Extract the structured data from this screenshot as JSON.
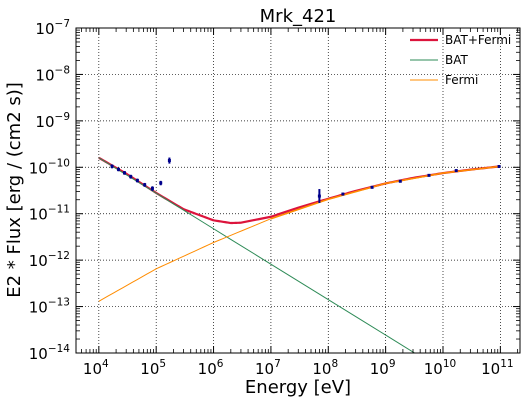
{
  "chart_data": {
    "type": "line",
    "title": "Mrk_421",
    "xlabel": "Energy [eV]",
    "ylabel": "E2 * Flux [erg / (cm2 s)]",
    "xscale": "log",
    "yscale": "log",
    "xlim": [
      4000,
      220000000000
    ],
    "ylim": [
      1e-14,
      1e-07
    ],
    "grid": true,
    "grid_style": "dotted",
    "legend_position": "top-right",
    "x_ticks": [
      {
        "base": "10",
        "exp": "4",
        "value": 10000
      },
      {
        "base": "10",
        "exp": "5",
        "value": 100000
      },
      {
        "base": "10",
        "exp": "6",
        "value": 1000000
      },
      {
        "base": "10",
        "exp": "7",
        "value": 10000000
      },
      {
        "base": "10",
        "exp": "8",
        "value": 100000000
      },
      {
        "base": "10",
        "exp": "9",
        "value": 1000000000
      },
      {
        "base": "10",
        "exp": "10",
        "value": 10000000000
      },
      {
        "base": "10",
        "exp": "11",
        "value": 100000000000
      }
    ],
    "y_ticks": [
      {
        "base": "10",
        "exp": "−14",
        "value": 1e-14
      },
      {
        "base": "10",
        "exp": "−13",
        "value": 1e-13
      },
      {
        "base": "10",
        "exp": "−12",
        "value": 1e-12
      },
      {
        "base": "10",
        "exp": "−11",
        "value": 1e-11
      },
      {
        "base": "10",
        "exp": "−10",
        "value": 1e-10
      },
      {
        "base": "10",
        "exp": "−9",
        "value": 1e-09
      },
      {
        "base": "10",
        "exp": "−8",
        "value": 1e-08
      },
      {
        "base": "10",
        "exp": "−7",
        "value": 1e-07
      }
    ],
    "series": [
      {
        "name": "BAT+Fermi",
        "color": "#dc143c",
        "points": [
          [
            10000,
            1.6e-10
          ],
          [
            30000,
            7.3e-11
          ],
          [
            100000,
            2.8e-11
          ],
          [
            300000,
            1.25e-11
          ],
          [
            1000000,
            7.2e-12
          ],
          [
            2000000,
            6.3e-12
          ],
          [
            3000000,
            6.4e-12
          ],
          [
            10000000,
            8.6e-12
          ],
          [
            30000000,
            1.35e-11
          ],
          [
            100000000,
            2.1e-11
          ],
          [
            300000000,
            3.1e-11
          ],
          [
            1000000000,
            4.5e-11
          ],
          [
            3000000000,
            5.9e-11
          ],
          [
            10000000000,
            7.5e-11
          ],
          [
            30000000000,
            8.9e-11
          ],
          [
            100000000000,
            1.05e-10
          ]
        ]
      },
      {
        "name": "BAT",
        "color": "#2e8b57",
        "points": [
          [
            10000,
            1.6e-10
          ],
          [
            3200000000,
            1e-14
          ]
        ]
      },
      {
        "name": "Fermi",
        "color": "#ff8c00",
        "points": [
          [
            10000,
            1.3e-13
          ],
          [
            100000,
            6.5e-13
          ],
          [
            1000000,
            2.4e-12
          ],
          [
            10000000,
            7.8e-12
          ],
          [
            100000000,
            2.05e-11
          ],
          [
            1000000000,
            4.5e-11
          ],
          [
            10000000000,
            7.5e-11
          ],
          [
            100000000000,
            1.05e-10
          ]
        ]
      }
    ],
    "data_points": {
      "color": "#00008b",
      "points": [
        {
          "x": 17000,
          "y": 1.05e-10,
          "ylo": 9.5e-11,
          "yhi": 1.15e-10
        },
        {
          "x": 22000,
          "y": 9e-11,
          "ylo": 8.2e-11,
          "yhi": 9.8e-11
        },
        {
          "x": 28000,
          "y": 7.6e-11,
          "ylo": 6.9e-11,
          "yhi": 8.3e-11
        },
        {
          "x": 36000,
          "y": 6.3e-11,
          "ylo": 5.7e-11,
          "yhi": 6.9e-11
        },
        {
          "x": 47000,
          "y": 5.2e-11,
          "ylo": 4.7e-11,
          "yhi": 5.7e-11
        },
        {
          "x": 63000,
          "y": 4.2e-11,
          "ylo": 3.8e-11,
          "yhi": 4.6e-11
        },
        {
          "x": 86000,
          "y": 3.5e-11,
          "ylo": 3.1e-11,
          "yhi": 3.9e-11
        },
        {
          "x": 120000,
          "y": 4.6e-11,
          "ylo": 4.1e-11,
          "yhi": 5.1e-11
        },
        {
          "x": 170000,
          "y": 1.4e-10,
          "ylo": 1.2e-10,
          "yhi": 1.62e-10
        },
        {
          "x": 70000000,
          "y": 2.4e-11,
          "ylo": 1.7e-11,
          "yhi": 3.4e-11
        },
        {
          "x": 180000000,
          "y": 2.65e-11,
          "ylo": 2.5e-11,
          "yhi": 2.8e-11
        },
        {
          "x": 580000000,
          "y": 3.7e-11,
          "ylo": 3.5e-11,
          "yhi": 3.9e-11
        },
        {
          "x": 1800000000,
          "y": 5e-11,
          "ylo": 4.7e-11,
          "yhi": 5.3e-11
        },
        {
          "x": 5700000000,
          "y": 6.7e-11,
          "ylo": 6.4e-11,
          "yhi": 7e-11
        },
        {
          "x": 17000000000,
          "y": 8.5e-11,
          "ylo": 8.1e-11,
          "yhi": 8.9e-11
        },
        {
          "x": 95000000000,
          "y": 1.04e-10,
          "ylo": 9.8e-11,
          "yhi": 1.1e-10
        }
      ]
    }
  }
}
